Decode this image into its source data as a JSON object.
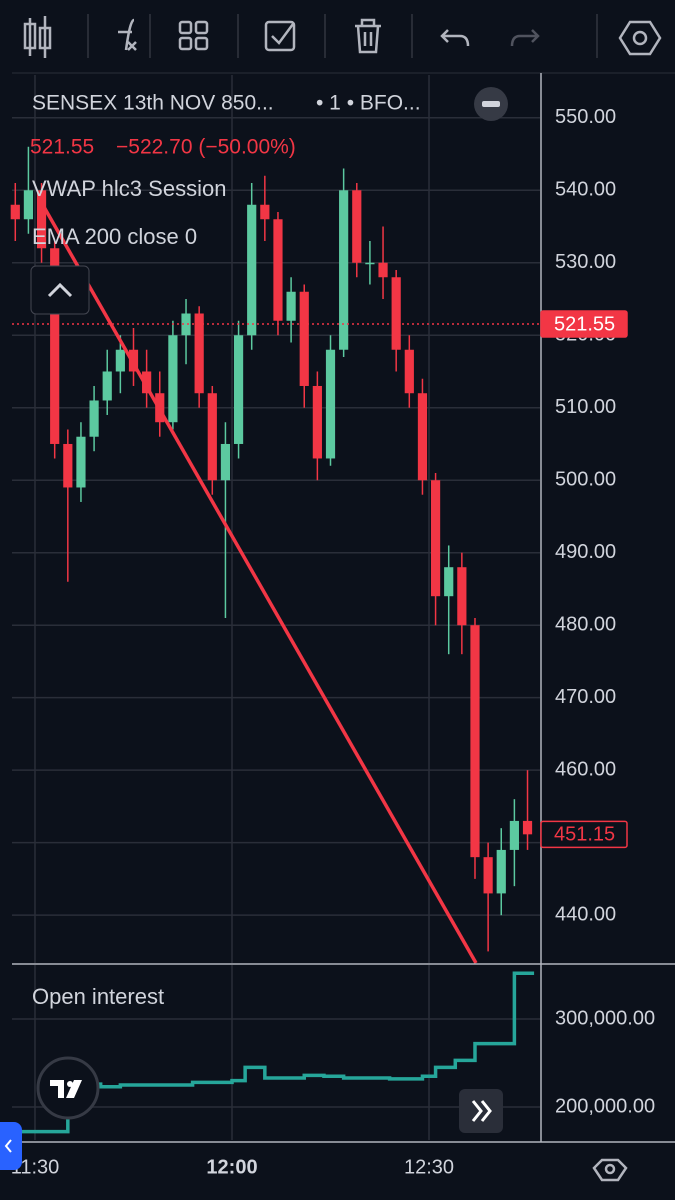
{
  "chart_data": [
    {
      "type": "candlestick",
      "title": "SENSEX 13th NOV 850...",
      "interval_exchange": "• 1 • BFO...",
      "quote": {
        "price": 521.55,
        "change": "−522.70 (−50.00%)"
      },
      "indicators": [
        "VWAP hlc3 Session",
        "EMA 200 close 0"
      ],
      "up_color": "#5cc9a0",
      "down_color": "#f23645",
      "x": [
        687,
        689,
        691,
        693,
        695,
        697,
        699,
        701,
        703,
        705,
        707,
        709,
        711,
        713,
        715,
        717,
        719,
        721,
        723,
        725,
        727,
        729,
        731,
        733,
        735,
        737,
        739,
        741,
        743,
        745,
        747,
        749,
        751,
        753,
        755,
        757,
        759,
        761,
        763,
        765
      ],
      "open": [
        538,
        536,
        540,
        532,
        505,
        499,
        506,
        511,
        515,
        518,
        515,
        512,
        508,
        520,
        523,
        512,
        500,
        505,
        520,
        538,
        536,
        522,
        526,
        513,
        503,
        518,
        540,
        530,
        530,
        528,
        518,
        512,
        500,
        484,
        488,
        480,
        448,
        443,
        449,
        453
      ],
      "high": [
        541,
        546,
        541,
        533,
        507,
        508,
        513,
        518,
        520,
        521,
        518,
        515,
        522,
        525,
        524,
        513,
        508,
        522,
        541,
        542,
        537,
        528,
        527,
        515,
        520,
        543,
        541,
        533,
        535,
        529,
        520,
        514,
        501,
        491,
        490,
        481,
        450,
        452,
        456,
        460
      ],
      "low": [
        533,
        534,
        530,
        503,
        486,
        497,
        504,
        509,
        512,
        513,
        510,
        506,
        507,
        516,
        510,
        498,
        481,
        503,
        518,
        533,
        520,
        519,
        510,
        500,
        502,
        517,
        528,
        527,
        525,
        515,
        510,
        498,
        480,
        476,
        476,
        445,
        435,
        440,
        444,
        449
      ],
      "close": [
        536,
        540,
        532,
        505,
        499,
        506,
        511,
        515,
        518,
        515,
        512,
        508,
        520,
        523,
        512,
        500,
        505,
        520,
        538,
        536,
        522,
        526,
        513,
        503,
        518,
        540,
        530,
        530,
        528,
        518,
        512,
        500,
        484,
        488,
        480,
        448,
        443,
        449,
        453,
        451.15
      ],
      "xlim": [
        686.5,
        766.9
      ],
      "xticks": [
        {
          "value": 690,
          "label": "11:30"
        },
        {
          "value": 720,
          "label": "12:00"
        },
        {
          "value": 750,
          "label": "12:30"
        }
      ],
      "ylim": [
        433.4,
        555.9
      ],
      "yticks": [
        {
          "value": 440,
          "label": "440.00"
        },
        {
          "value": 450,
          "label": "450.00"
        },
        {
          "value": 460,
          "label": "460.00"
        },
        {
          "value": 470,
          "label": "470.00"
        },
        {
          "value": 480,
          "label": "480.00"
        },
        {
          "value": 490,
          "label": "490.00"
        },
        {
          "value": 500,
          "label": "500.00"
        },
        {
          "value": 510,
          "label": "510.00"
        },
        {
          "value": 520,
          "label": "520.00"
        },
        {
          "value": 530,
          "label": "530.00"
        },
        {
          "value": 540,
          "label": "540.00"
        },
        {
          "value": 550,
          "label": "550.00"
        }
      ],
      "grid": true,
      "price_lines": [
        {
          "value": 521.55,
          "color": "#f23645",
          "style": "filled"
        },
        {
          "value": 451.15,
          "color": "#f23645",
          "style": "outlined"
        }
      ]
    },
    {
      "type": "line",
      "title": "Open interest",
      "color": "#26a69a",
      "step": true,
      "x": [
        687,
        695,
        700,
        703,
        714,
        720,
        722,
        725,
        731,
        734,
        737,
        744,
        749,
        751,
        754,
        757,
        763,
        766
      ],
      "values": [
        172000,
        226000,
        223000,
        225000,
        228000,
        230000,
        245000,
        233000,
        236000,
        235000,
        233000,
        232000,
        235000,
        245000,
        253000,
        272000,
        352000,
        352000
      ],
      "xlim": [
        686.5,
        766.9
      ],
      "ylim": [
        162500,
        361400
      ],
      "yticks": [
        {
          "value": 200000,
          "label": "200,000.00"
        },
        {
          "value": 300000,
          "label": "300,000.00"
        }
      ],
      "grid": true
    }
  ]
}
